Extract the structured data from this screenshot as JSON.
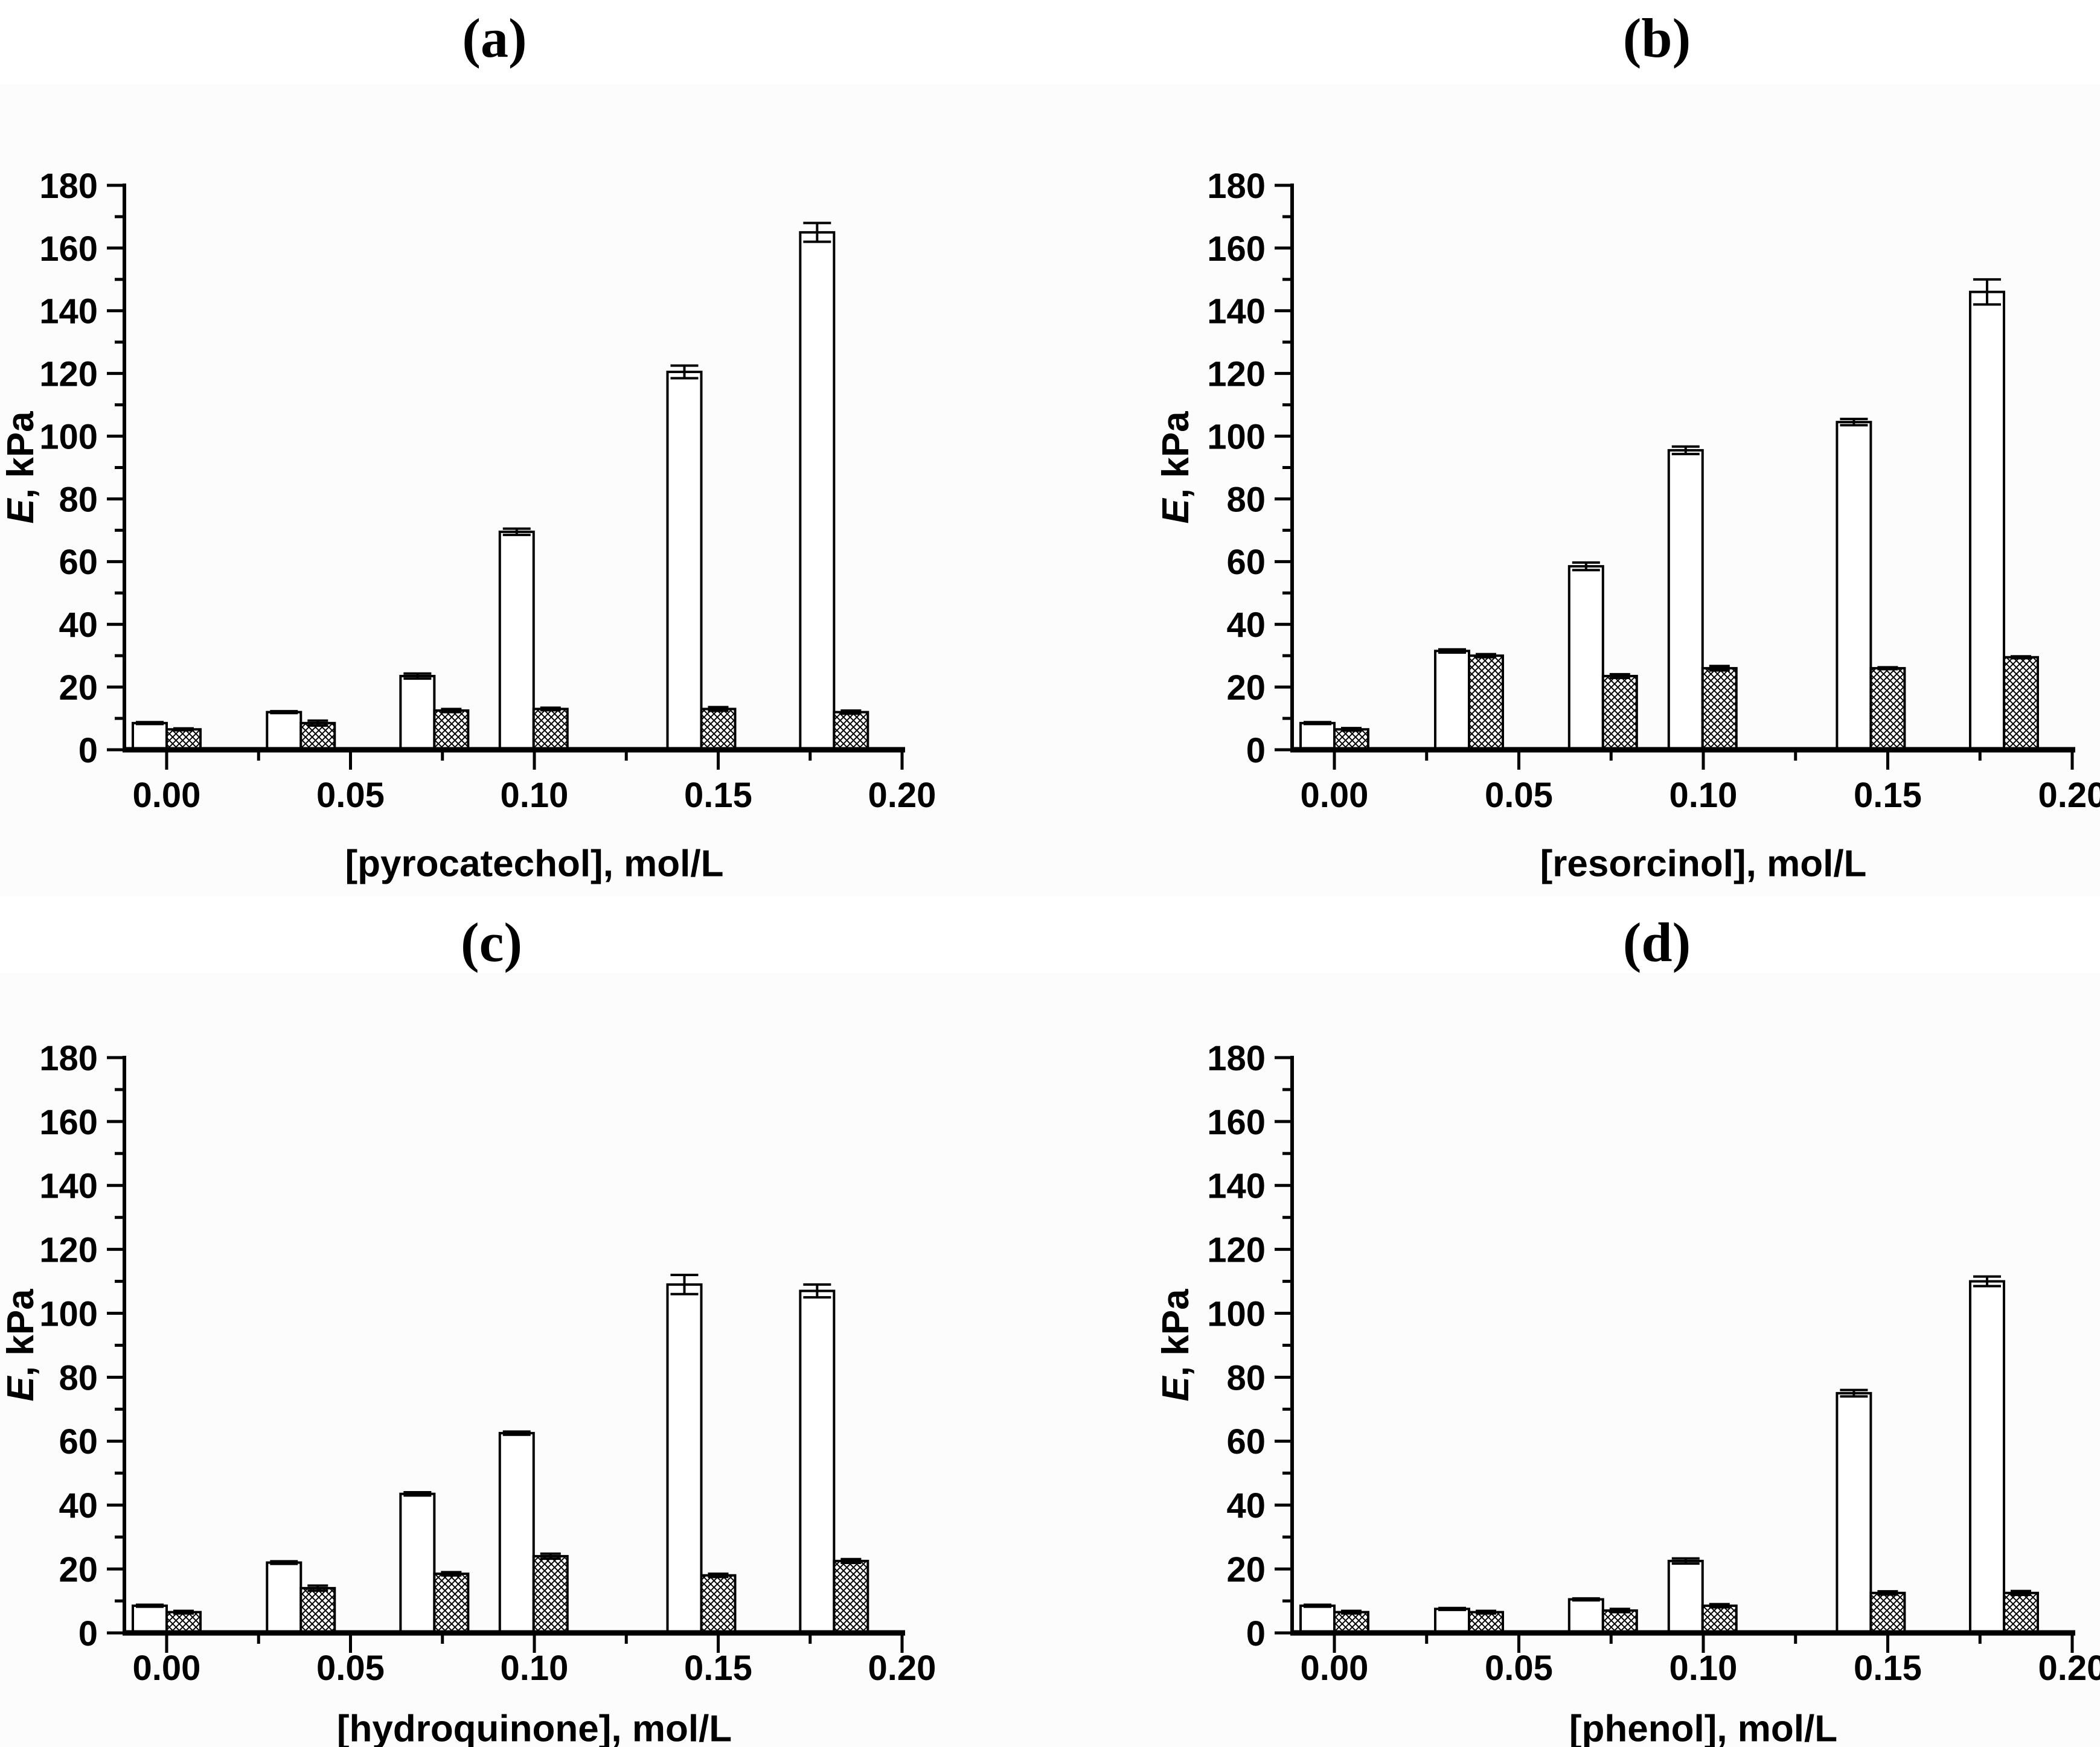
{
  "figure": {
    "background_color": "#ffffff",
    "ink_color": "#000000",
    "panel_letters": [
      "(a)",
      "(b)",
      "(c)",
      "(d)"
    ]
  },
  "axes_text": {
    "y_tick_labels": [
      "0",
      "20",
      "40",
      "60",
      "80",
      "100",
      "120",
      "140",
      "160",
      "180"
    ],
    "x_tick_labels": [
      "0.00",
      "0.05",
      "0.10",
      "0.15",
      "0.20"
    ]
  },
  "chart_data": [
    {
      "type": "bar",
      "panel_label": "(a)",
      "xlabel": "[pyrocatechol], mol/L",
      "ylabel": "E, kPa",
      "ylabel_italic_part": "E",
      "ylabel_regular_part": ", kPa",
      "ylim": [
        0,
        180
      ],
      "y_major_step": 20,
      "y_minor_step": 10,
      "xlim": [
        -0.0115,
        0.2
      ],
      "x_major_ticks": [
        0.0,
        0.05,
        0.1,
        0.15,
        0.2
      ],
      "x_minor_ticks": [
        0.025,
        0.075,
        0.125,
        0.175
      ],
      "pair_centers": [
        0.0,
        0.0365,
        0.0728,
        0.0998,
        0.1454,
        0.1815
      ],
      "legend": "none",
      "grid": "off",
      "series": [
        {
          "name": "open-bars",
          "pattern": "solid-white",
          "values": [
            8.5,
            12.0,
            23.5,
            69.5,
            120.5,
            165.0
          ],
          "errors": [
            0.3,
            0.3,
            0.8,
            1.0,
            2.0,
            3.0
          ]
        },
        {
          "name": "crosshatch-bars",
          "pattern": "crosshatch",
          "values": [
            6.5,
            8.5,
            12.5,
            13.0,
            13.0,
            12.0
          ],
          "errors": [
            0.3,
            0.8,
            0.5,
            0.4,
            0.6,
            0.5
          ]
        }
      ]
    },
    {
      "type": "bar",
      "panel_label": "(b)",
      "xlabel": "[resorcinol], mol/L",
      "ylabel": "E, kPa",
      "ylabel_italic_part": "E",
      "ylabel_regular_part": ", kPa",
      "ylim": [
        0,
        180
      ],
      "y_major_step": 20,
      "y_minor_step": 10,
      "xlim": [
        -0.0115,
        0.2
      ],
      "x_major_ticks": [
        0.0,
        0.05,
        0.1,
        0.15,
        0.2
      ],
      "x_minor_ticks": [
        0.025,
        0.075,
        0.125,
        0.175
      ],
      "pair_centers": [
        0.0,
        0.0365,
        0.0728,
        0.0998,
        0.1454,
        0.1815
      ],
      "legend": "none",
      "grid": "off",
      "series": [
        {
          "name": "open-bars",
          "pattern": "solid-white",
          "values": [
            8.5,
            31.5,
            58.5,
            95.5,
            104.5,
            146.0
          ],
          "errors": [
            0.3,
            0.5,
            1.2,
            1.2,
            1.0,
            4.0
          ]
        },
        {
          "name": "crosshatch-bars",
          "pattern": "crosshatch",
          "values": [
            6.5,
            30.0,
            23.5,
            26.0,
            26.0,
            29.5
          ],
          "errors": [
            0.4,
            0.5,
            0.6,
            0.7,
            0.3,
            0.3
          ]
        }
      ]
    },
    {
      "type": "bar",
      "panel_label": "(c)",
      "xlabel": "[hydroquinone], mol/L",
      "ylabel": "E, kPa",
      "ylabel_italic_part": "E",
      "ylabel_regular_part": ", kPa",
      "ylim": [
        0,
        180
      ],
      "y_major_step": 20,
      "y_minor_step": 10,
      "xlim": [
        -0.0115,
        0.2
      ],
      "x_major_ticks": [
        0.0,
        0.05,
        0.1,
        0.15,
        0.2
      ],
      "x_minor_ticks": [
        0.025,
        0.075,
        0.125,
        0.175
      ],
      "pair_centers": [
        0.0,
        0.0365,
        0.0728,
        0.0998,
        0.1454,
        0.1815
      ],
      "legend": "none",
      "grid": "off",
      "series": [
        {
          "name": "open-bars",
          "pattern": "solid-white",
          "values": [
            8.5,
            22.0,
            43.5,
            62.5,
            109.0,
            107.0
          ],
          "errors": [
            0.3,
            0.4,
            0.5,
            0.5,
            3.0,
            2.0
          ]
        },
        {
          "name": "crosshatch-bars",
          "pattern": "crosshatch",
          "values": [
            6.5,
            14.0,
            18.5,
            24.0,
            18.0,
            22.5
          ],
          "errors": [
            0.4,
            0.8,
            0.5,
            0.8,
            0.5,
            0.6
          ]
        }
      ]
    },
    {
      "type": "bar",
      "panel_label": "(d)",
      "xlabel": "[phenol], mol/L",
      "ylabel": "E, kPa",
      "ylabel_italic_part": "E",
      "ylabel_regular_part": ", kPa",
      "ylim": [
        0,
        180
      ],
      "y_major_step": 20,
      "y_minor_step": 10,
      "xlim": [
        -0.0115,
        0.2
      ],
      "x_major_ticks": [
        0.0,
        0.05,
        0.1,
        0.15,
        0.2
      ],
      "x_minor_ticks": [
        0.025,
        0.075,
        0.125,
        0.175
      ],
      "pair_centers": [
        0.0,
        0.0365,
        0.0728,
        0.0998,
        0.1454,
        0.1815
      ],
      "legend": "none",
      "grid": "off",
      "series": [
        {
          "name": "open-bars",
          "pattern": "solid-white",
          "values": [
            8.5,
            7.5,
            10.5,
            22.5,
            75.0,
            110.0
          ],
          "errors": [
            0.3,
            0.3,
            0.3,
            0.8,
            1.0,
            1.5
          ]
        },
        {
          "name": "crosshatch-bars",
          "pattern": "crosshatch",
          "values": [
            6.5,
            6.5,
            7.0,
            8.5,
            12.5,
            12.5
          ],
          "errors": [
            0.4,
            0.4,
            0.5,
            0.5,
            0.5,
            0.6
          ]
        }
      ]
    }
  ]
}
